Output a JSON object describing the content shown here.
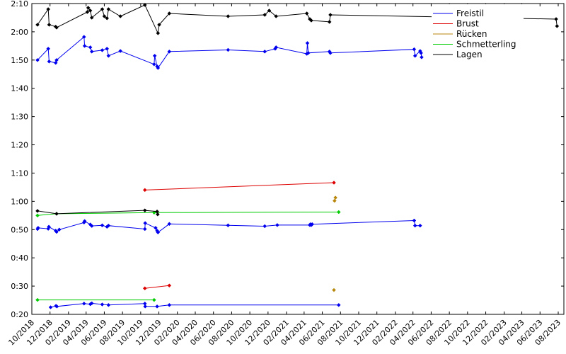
{
  "chart_data": {
    "type": "line",
    "title": "",
    "xlabel": "",
    "ylabel": "",
    "x_type": "date",
    "xlim": [
      "2018-10-01",
      "2023-08-20"
    ],
    "ylim": [
      "0:20",
      "2:10"
    ],
    "y_format": "m:ss",
    "grid": false,
    "legend": "top-right",
    "x_ticks": [
      "10/2018",
      "12/2018",
      "02/2019",
      "04/2019",
      "06/2019",
      "08/2019",
      "10/2019",
      "12/2019",
      "02/2020",
      "04/2020",
      "06/2020",
      "08/2020",
      "10/2020",
      "12/2020",
      "02/2021",
      "04/2021",
      "06/2021",
      "08/2021",
      "10/2021",
      "12/2021",
      "02/2022",
      "04/2022",
      "06/2022",
      "08/2022",
      "10/2022",
      "12/2022",
      "02/2023",
      "04/2023",
      "06/2023",
      "08/2023"
    ],
    "y_ticks": [
      "0:20",
      "0:30",
      "0:40",
      "0:50",
      "1:00",
      "1:10",
      "1:20",
      "1:30",
      "1:40",
      "1:50",
      "2:00",
      "2:10"
    ],
    "legend_entries": [
      {
        "name": "Freistil",
        "color": "#0000ee"
      },
      {
        "name": "Brust",
        "color": "#dd0000"
      },
      {
        "name": "Rücken",
        "color": "#b8860b"
      },
      {
        "name": "Schmetterling",
        "color": "#00cc00"
      },
      {
        "name": "Lagen",
        "color": "#000000"
      }
    ],
    "series": [
      {
        "name": "Freistil",
        "color": "#0000ee",
        "points": [
          [
            "2018-12-03",
            "0:22.5"
          ],
          [
            "2018-12-21",
            "0:23.0"
          ],
          [
            "2018-12-24",
            "0:22.8"
          ],
          [
            "2019-03-25",
            "0:23.8"
          ],
          [
            "2019-04-15",
            "0:23.6"
          ],
          [
            "2019-04-20",
            "0:23.9"
          ],
          [
            "2019-05-25",
            "0:23.5"
          ],
          [
            "2019-06-15",
            "0:23.3"
          ],
          [
            "2019-10-15",
            "0:23.8"
          ],
          [
            "2019-10-16",
            "0:22.8"
          ],
          [
            "2019-11-25",
            "0:22.8"
          ],
          [
            "2020-01-05",
            "0:23.3"
          ],
          [
            "2021-07-26",
            "0:23.3"
          ]
        ]
      },
      {
        "name": "Freistil",
        "color": "#0000ee",
        "points": [
          [
            "2018-10-20",
            "0:50.2"
          ],
          [
            "2018-10-22",
            "0:50.6"
          ],
          [
            "2018-11-25",
            "0:50.3"
          ],
          [
            "2018-11-27",
            "0:51.0"
          ],
          [
            "2018-12-20",
            "0:49.6"
          ],
          [
            "2018-12-23",
            "0:49.2"
          ],
          [
            "2019-01-01",
            "0:50.0"
          ],
          [
            "2019-03-25",
            "0:52.5"
          ],
          [
            "2019-03-27",
            "0:53.0"
          ],
          [
            "2019-04-15",
            "0:51.8"
          ],
          [
            "2019-04-20",
            "0:51.3"
          ],
          [
            "2019-05-25",
            "0:51.5"
          ],
          [
            "2019-06-10",
            "0:51.0"
          ],
          [
            "2019-06-15",
            "0:51.4"
          ],
          [
            "2019-10-15",
            "0:50.2"
          ],
          [
            "2019-10-16",
            "0:52.3"
          ],
          [
            "2019-11-20",
            "0:50.6"
          ],
          [
            "2019-11-25",
            "0:49.6"
          ],
          [
            "2019-11-28",
            "0:49.0"
          ],
          [
            "2020-01-05",
            "0:52.0"
          ],
          [
            "2020-07-20",
            "0:51.5"
          ],
          [
            "2020-11-20",
            "0:51.2"
          ],
          [
            "2021-01-01",
            "0:51.6"
          ],
          [
            "2021-04-20",
            "0:51.6"
          ],
          [
            "2021-04-22",
            "0:51.9"
          ],
          [
            "2021-04-25",
            "0:51.6"
          ],
          [
            "2021-04-28",
            "0:51.9"
          ],
          [
            "2022-04-05",
            "0:53.2"
          ],
          [
            "2022-04-08",
            "0:51.4"
          ],
          [
            "2022-04-25",
            "0:51.4"
          ]
        ]
      },
      {
        "name": "Freistil",
        "color": "#0000ee",
        "points": [
          [
            "2018-10-20",
            "1:50.0"
          ],
          [
            "2018-11-25",
            "1:54.0"
          ],
          [
            "2018-11-28",
            "1:49.5"
          ],
          [
            "2018-12-20",
            "1:49.0"
          ],
          [
            "2018-12-23",
            "1:50.0"
          ],
          [
            "2019-03-25",
            "1:58.2"
          ],
          [
            "2019-03-27",
            "1:55.0"
          ],
          [
            "2019-04-15",
            "1:54.5"
          ],
          [
            "2019-04-20",
            "1:53.0"
          ],
          [
            "2019-05-25",
            "1:53.5"
          ],
          [
            "2019-06-10",
            "1:54.0"
          ],
          [
            "2019-06-15",
            "1:51.5"
          ],
          [
            "2019-07-25",
            "1:53.2"
          ],
          [
            "2019-11-15",
            "1:48.5"
          ],
          [
            "2019-11-17",
            "1:51.5"
          ],
          [
            "2019-11-25",
            "1:47.8"
          ],
          [
            "2019-11-28",
            "1:47.2"
          ],
          [
            "2020-01-05",
            "1:53.0"
          ],
          [
            "2020-07-20",
            "1:53.6"
          ],
          [
            "2020-11-20",
            "1:53.0"
          ],
          [
            "2020-12-25",
            "1:54.0"
          ],
          [
            "2020-12-28",
            "1:54.5"
          ],
          [
            "2021-04-10",
            "1:52.2"
          ],
          [
            "2021-04-12",
            "1:56.0"
          ],
          [
            "2021-04-15",
            "1:52.5"
          ],
          [
            "2021-06-25",
            "1:53.0"
          ],
          [
            "2021-06-28",
            "1:52.5"
          ],
          [
            "2022-04-05",
            "1:53.8"
          ],
          [
            "2022-04-08",
            "1:51.5"
          ],
          [
            "2022-04-25",
            "1:53.2"
          ],
          [
            "2022-04-28",
            "1:52.5"
          ],
          [
            "2022-04-30",
            "1:51.0"
          ]
        ]
      },
      {
        "name": "Brust",
        "color": "#dd0000",
        "points": [
          [
            "2019-10-15",
            "0:29.2"
          ],
          [
            "2020-01-05",
            "0:30.2"
          ]
        ]
      },
      {
        "name": "Brust",
        "color": "#dd0000",
        "points": [
          [
            "2019-10-15",
            "1:04.0"
          ],
          [
            "2021-07-10",
            "1:06.6"
          ]
        ]
      },
      {
        "name": "Rücken",
        "color": "#b8860b",
        "points": [
          [
            "2021-07-10",
            "0:28.6"
          ]
        ]
      },
      {
        "name": "Rücken",
        "color": "#b8860b",
        "points": [
          [
            "2021-07-12",
            "1:00.2"
          ]
        ]
      },
      {
        "name": "Rücken",
        "color": "#b8860b",
        "points": [
          [
            "2021-07-15",
            "1:01.3"
          ]
        ]
      },
      {
        "name": "Schmetterling",
        "color": "#00cc00",
        "points": [
          [
            "2018-10-20",
            "0:25.1"
          ],
          [
            "2019-11-15",
            "0:25.1"
          ]
        ]
      },
      {
        "name": "Schmetterling",
        "color": "#00cc00",
        "points": [
          [
            "2018-10-20",
            "0:55.0"
          ],
          [
            "2018-12-23",
            "0:55.6"
          ],
          [
            "2019-11-15",
            "0:56.0"
          ],
          [
            "2021-07-26",
            "0:56.2"
          ]
        ]
      },
      {
        "name": "Lagen",
        "color": "#000000",
        "points": [
          [
            "2018-10-20",
            "0:56.6"
          ],
          [
            "2018-12-23",
            "0:55.6"
          ],
          [
            "2019-10-15",
            "0:56.8"
          ],
          [
            "2019-11-25",
            "0:56.4"
          ],
          [
            "2019-11-27",
            "0:55.4"
          ]
        ]
      },
      {
        "name": "Lagen",
        "color": "#000000",
        "points": [
          [
            "2018-10-20",
            "2:02.5"
          ],
          [
            "2018-11-25",
            "2:08.0"
          ],
          [
            "2018-11-28",
            "2:02.5"
          ],
          [
            "2018-12-20",
            "2:01.8"
          ],
          [
            "2018-12-23",
            "2:01.5"
          ],
          [
            "2019-04-05",
            "2:07.0"
          ],
          [
            "2019-04-08",
            "2:08.5"
          ],
          [
            "2019-04-15",
            "2:07.5"
          ],
          [
            "2019-04-20",
            "2:05.0"
          ],
          [
            "2019-05-25",
            "2:08.0"
          ],
          [
            "2019-06-01",
            "2:05.5"
          ],
          [
            "2019-06-10",
            "2:04.8"
          ],
          [
            "2019-06-15",
            "2:08.0"
          ],
          [
            "2019-07-25",
            "2:05.5"
          ],
          [
            "2019-10-15",
            "2:09.5"
          ],
          [
            "2019-11-28",
            "1:59.5"
          ],
          [
            "2019-12-02",
            "2:02.5"
          ],
          [
            "2020-01-05",
            "2:06.5"
          ],
          [
            "2020-07-20",
            "2:05.5"
          ],
          [
            "2020-11-20",
            "2:06.0"
          ],
          [
            "2020-12-05",
            "2:07.5"
          ],
          [
            "2020-12-28",
            "2:05.5"
          ],
          [
            "2021-04-10",
            "2:06.5"
          ],
          [
            "2021-04-20",
            "2:04.5"
          ],
          [
            "2021-04-25",
            "2:04.0"
          ],
          [
            "2021-06-25",
            "2:03.5"
          ],
          [
            "2021-06-28",
            "2:06.0"
          ],
          [
            "2023-07-25",
            "2:04.5"
          ],
          [
            "2023-07-28",
            "2:02.0"
          ]
        ]
      }
    ]
  }
}
